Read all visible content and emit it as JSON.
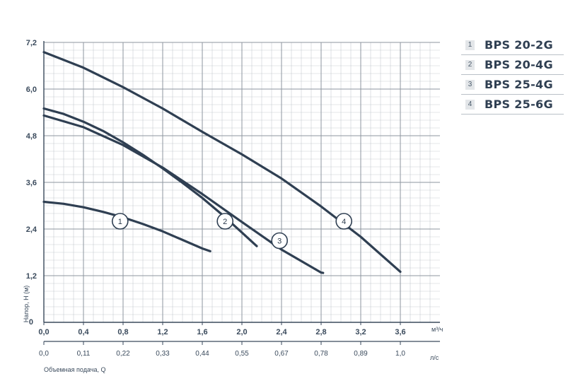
{
  "chart_data": {
    "type": "line",
    "title": "",
    "ylabel": "Напор, H (м)",
    "xlabel": "Объемная подача, Q",
    "x_unit": "м³/ч",
    "x2_unit": "л/с",
    "xlim": [
      0,
      4.0
    ],
    "ylim": [
      0,
      7.2
    ],
    "x_ticks": [
      "0,0",
      "0,4",
      "0,8",
      "1,2",
      "1,6",
      "2,0",
      "2,4",
      "2,8",
      "3,2",
      "3,6"
    ],
    "x_tick_values": [
      0,
      0.4,
      0.8,
      1.2,
      1.6,
      2.0,
      2.4,
      2.8,
      3.2,
      3.6
    ],
    "x2_ticks": [
      "0,0",
      "0,11",
      "0,22",
      "0,33",
      "0,44",
      "0,55",
      "0,67",
      "0,78",
      "0,89",
      "1,0"
    ],
    "y_ticks": [
      "1,2",
      "2,4",
      "3,6",
      "4,8",
      "6,0",
      "7,2"
    ],
    "y_tick_values": [
      1.2,
      2.4,
      3.6,
      4.8,
      6.0,
      7.2
    ],
    "y_zero_label": "0",
    "grid": true,
    "series": [
      {
        "name": "1",
        "label_at": [
          0.77,
          2.6
        ],
        "x": [
          0,
          0.2,
          0.4,
          0.6,
          0.8,
          1.0,
          1.2,
          1.4,
          1.6,
          1.68
        ],
        "y": [
          3.1,
          3.05,
          2.96,
          2.84,
          2.7,
          2.53,
          2.34,
          2.12,
          1.9,
          1.83
        ]
      },
      {
        "name": "2",
        "label_at": [
          1.83,
          2.6
        ],
        "x": [
          0,
          0.2,
          0.4,
          0.6,
          0.8,
          1.0,
          1.2,
          1.4,
          1.6,
          1.8,
          2.0,
          2.15
        ],
        "y": [
          5.5,
          5.36,
          5.16,
          4.92,
          4.63,
          4.31,
          3.96,
          3.59,
          3.2,
          2.77,
          2.31,
          1.96
        ]
      },
      {
        "name": "3",
        "label_at": [
          2.38,
          2.1
        ],
        "x": [
          0,
          0.4,
          0.8,
          1.2,
          1.6,
          2.0,
          2.4,
          2.8,
          2.82
        ],
        "y": [
          5.32,
          5.02,
          4.56,
          3.98,
          3.3,
          2.58,
          1.87,
          1.28,
          1.27
        ]
      },
      {
        "name": "4",
        "label_at": [
          3.03,
          2.6
        ],
        "x": [
          0,
          0.4,
          0.8,
          1.2,
          1.6,
          2.0,
          2.4,
          2.8,
          3.2,
          3.6
        ],
        "y": [
          6.95,
          6.55,
          6.05,
          5.5,
          4.9,
          4.32,
          3.7,
          2.98,
          2.2,
          1.3
        ]
      }
    ]
  },
  "legend": [
    {
      "num": "1",
      "name": "BPS 20-2G"
    },
    {
      "num": "2",
      "name": "BPS 20-4G"
    },
    {
      "num": "3",
      "name": "BPS 25-4G"
    },
    {
      "num": "4",
      "name": "BPS 25-6G"
    }
  ],
  "colors": {
    "curve": "#2f3f52",
    "grid": "#b4bbc2",
    "axis": "#3a4a5c"
  }
}
